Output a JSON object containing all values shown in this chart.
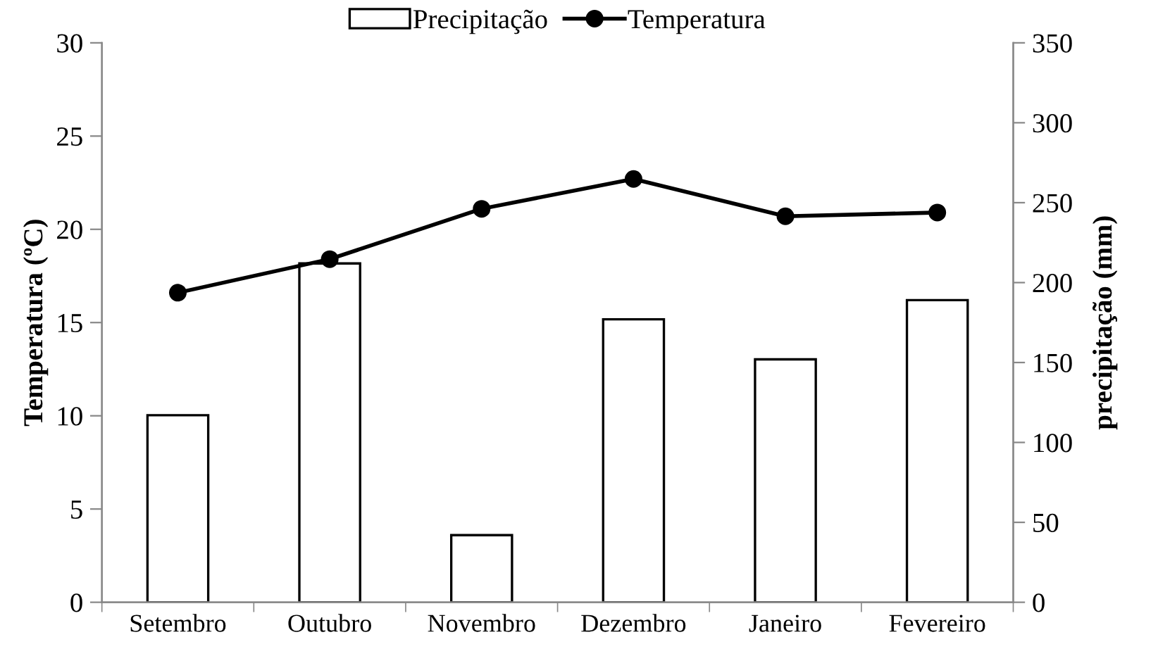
{
  "chart_data": {
    "type": "bar",
    "categories": [
      "Setembro",
      "Outubro",
      "Novembro",
      "Dezembro",
      "Janeiro",
      "Fevereiro"
    ],
    "ylabel": "Temperatura (ºC)",
    "y2label": "precipitação (mm)",
    "ylim": [
      0,
      30
    ],
    "yticks": [
      0,
      5,
      10,
      15,
      20,
      25,
      30
    ],
    "y2lim": [
      0,
      350
    ],
    "y2ticks": [
      0,
      50,
      100,
      150,
      200,
      250,
      300,
      350
    ],
    "legend": "top",
    "grid": false,
    "series": [
      {
        "name": "Precipitação",
        "axis": "y2",
        "color": "#ffffff",
        "values": [
          117,
          212,
          42,
          177,
          152,
          189
        ]
      },
      {
        "name": "Temperatura",
        "type": "line",
        "axis": "y",
        "color": "#000000",
        "marker": "circle",
        "values": [
          16.6,
          18.4,
          21.1,
          22.7,
          20.7,
          20.9
        ]
      }
    ]
  }
}
